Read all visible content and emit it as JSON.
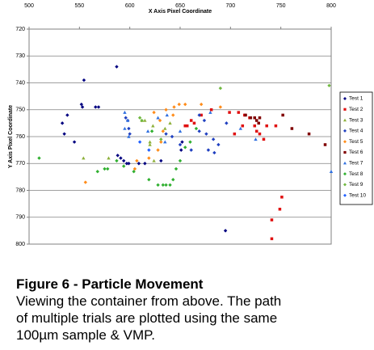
{
  "chart_data": {
    "type": "scatter",
    "x_label": "X Axis Pixel Coordinate",
    "y_label": "Y Axis Pixel Coordinate",
    "xlim": [
      500,
      800
    ],
    "xticks": [
      500,
      550,
      600,
      650,
      700,
      750,
      800
    ],
    "ylim": [
      720,
      800
    ],
    "yticks": [
      720,
      730,
      740,
      750,
      760,
      770,
      780,
      790,
      800
    ],
    "y_reversed": true,
    "x_axis_position": "top",
    "grid": true,
    "legend": "right",
    "series": [
      {
        "name": "Test 1",
        "color": "#000080",
        "marker": "diamond",
        "x": [
          554.5,
          552,
          553,
          566,
          569,
          538,
          533,
          535,
          545,
          587,
          588,
          591,
          594,
          597,
          599,
          609,
          615,
          631,
          651,
          652,
          695
        ],
        "values": [
          739,
          748,
          749,
          749,
          749,
          752,
          755,
          759,
          762,
          734,
          767,
          768,
          769,
          770,
          770,
          770,
          770,
          769,
          765,
          762,
          795
        ]
      },
      {
        "name": "Test 2",
        "color": "#e01010",
        "marker": "square",
        "x": [
          661,
          657,
          655,
          664,
          671,
          681,
          699,
          708,
          714,
          719,
          724,
          726,
          729,
          733,
          736,
          745,
          751,
          749,
          741,
          741,
          712,
          704
        ],
        "values": [
          754,
          756,
          756,
          755,
          752,
          750,
          751,
          751,
          752,
          753,
          756,
          758,
          759,
          761,
          756,
          756,
          782.5,
          787,
          791,
          798,
          756,
          759
        ]
      },
      {
        "name": "Test 3",
        "color": "#8db03a",
        "marker": "triangle",
        "x": [
          640,
          635,
          615,
          623,
          620,
          624,
          620,
          612,
          554,
          579
        ],
        "values": [
          755,
          757,
          754,
          756,
          762,
          769,
          763,
          754,
          768,
          768
        ]
      },
      {
        "name": "Test 4",
        "color": "#2040c0",
        "marker": "diamond",
        "x": [
          596,
          598,
          599,
          600,
          636,
          642,
          669,
          674,
          676,
          683,
          688,
          684,
          678,
          661,
          696,
          669,
          650
        ],
        "values": [
          753,
          754,
          757,
          759,
          759,
          760,
          752,
          754,
          759,
          761,
          763,
          766,
          765,
          765,
          755,
          758,
          763
        ]
      },
      {
        "name": "Test 5",
        "color": "#ff8c1a",
        "marker": "diamond",
        "x": [
          556,
          607,
          605,
          619,
          628,
          631,
          633,
          630,
          624,
          636,
          644,
          649,
          655,
          671,
          690,
          643
        ],
        "values": [
          777,
          769,
          772,
          768,
          765,
          762,
          758,
          754,
          751,
          750,
          749,
          748,
          748,
          748,
          749,
          752
        ]
      },
      {
        "name": "Test 6",
        "color": "#800000",
        "marker": "square",
        "x": [
          720,
          724,
          715,
          726,
          728,
          752,
          761,
          778,
          794,
          729
        ],
        "values": [
          753,
          753,
          752,
          754,
          755,
          752,
          757,
          759,
          763,
          753
        ]
      },
      {
        "name": "Test 7",
        "color": "#3070e0",
        "marker": "triangle",
        "x": [
          595,
          598,
          595,
          599,
          618,
          628,
          637,
          650,
          680,
          710,
          725,
          800,
          635
        ],
        "values": [
          751,
          754,
          757,
          760,
          758,
          753,
          752,
          758,
          751,
          757,
          761,
          773,
          762
        ]
      },
      {
        "name": "Test 8",
        "color": "#30b030",
        "marker": "diamond",
        "x": [
          510,
          568,
          575,
          578,
          594,
          604,
          619,
          628,
          633,
          636,
          640,
          643,
          646,
          650,
          655,
          660,
          666,
          622,
          587
        ],
        "values": [
          768,
          773,
          772,
          772,
          771,
          773,
          776,
          778,
          778,
          778,
          778,
          776,
          772,
          769,
          764,
          762,
          757,
          758,
          769
        ]
      },
      {
        "name": "Test 9",
        "color": "#70b840",
        "marker": "diamond",
        "x": [
          690,
          798,
          631,
          610,
          612
        ],
        "values": [
          742,
          741,
          761,
          753,
          754
        ]
      },
      {
        "name": "Test 10",
        "color": "#2060ff",
        "marker": "diamond",
        "x": [
          610,
          619
        ],
        "values": [
          762,
          765
        ]
      }
    ]
  },
  "caption": {
    "title": "Figure 6 - Particle Movement",
    "lines": [
      "Viewing the container from above. The path",
      "of multiple trials are plotted using the same",
      "100µm sample & VMP."
    ]
  }
}
